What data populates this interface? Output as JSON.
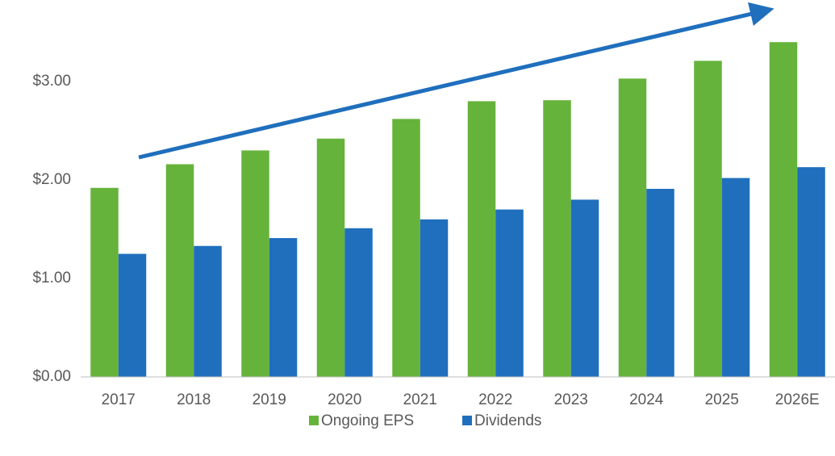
{
  "chart_data": {
    "type": "bar",
    "categories": [
      "2017",
      "2018",
      "2019",
      "2020",
      "2021",
      "2022",
      "2023",
      "2024",
      "2025",
      "2026E"
    ],
    "series": [
      {
        "name": "Ongoing EPS",
        "color": "#66b33b",
        "values": [
          1.92,
          2.16,
          2.3,
          2.42,
          2.62,
          2.8,
          2.81,
          3.03,
          3.21,
          3.4
        ]
      },
      {
        "name": "Dividends",
        "color": "#1f6fbd",
        "values": [
          1.25,
          1.33,
          1.41,
          1.51,
          1.6,
          1.7,
          1.8,
          1.91,
          2.02,
          2.13
        ]
      }
    ],
    "ylim": [
      0,
      3.8
    ],
    "yticks": [
      {
        "value": 0,
        "label": "$0.00"
      },
      {
        "value": 1,
        "label": "$1.00"
      },
      {
        "value": 2,
        "label": "$2.00"
      },
      {
        "value": 3,
        "label": "$3.00"
      }
    ],
    "grid": false,
    "legend": "bottom"
  }
}
